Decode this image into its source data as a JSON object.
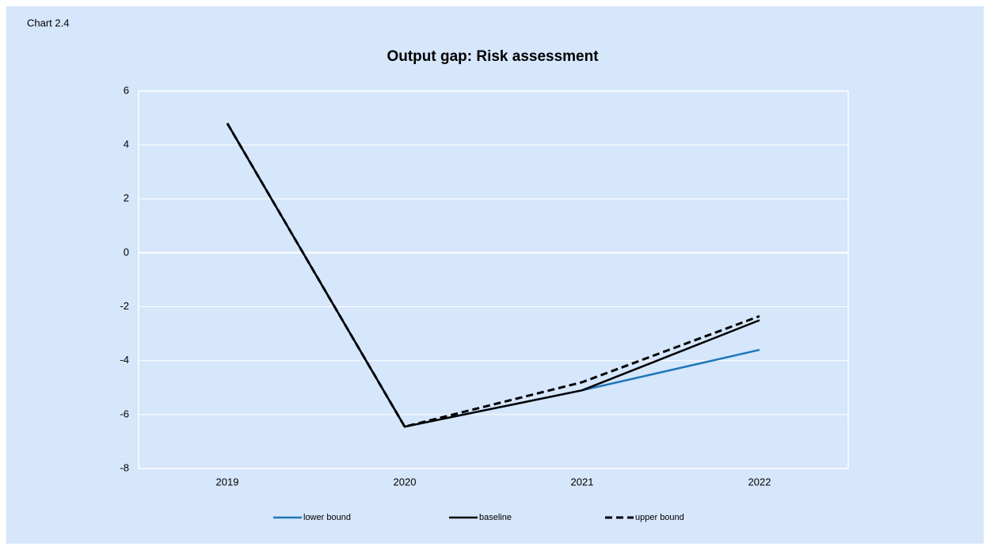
{
  "label": "Chart 2.4",
  "chart_data": {
    "type": "line",
    "title": "Output gap: Risk assessment",
    "categories": [
      "2019",
      "2020",
      "2021",
      "2022"
    ],
    "series": [
      {
        "name": "lower bound",
        "color": "#1f77b9",
        "dashed": false,
        "values": [
          4.8,
          -6.45,
          -5.1,
          -3.6
        ]
      },
      {
        "name": "baseline",
        "color": "#000000",
        "dashed": false,
        "values": [
          4.8,
          -6.45,
          -5.1,
          -2.5
        ]
      },
      {
        "name": "upper bound",
        "color": "#000000",
        "dashed": true,
        "values": [
          4.8,
          -6.45,
          -4.8,
          -2.35
        ]
      }
    ],
    "ylim": [
      -8,
      6
    ],
    "yticks": [
      -8,
      -6,
      -4,
      -2,
      0,
      2,
      4,
      6
    ],
    "grid": true,
    "legend": "bottom"
  }
}
